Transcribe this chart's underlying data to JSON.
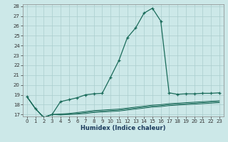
{
  "xlabel": "Humidex (Indice chaleur)",
  "bg_color": "#cce8e8",
  "grid_color": "#aacece",
  "line_color": "#1a6b5a",
  "xlim": [
    -0.5,
    23.5
  ],
  "ylim": [
    16.8,
    28.2
  ],
  "yticks": [
    17,
    18,
    19,
    20,
    21,
    22,
    23,
    24,
    25,
    26,
    27,
    28
  ],
  "xticks": [
    0,
    1,
    2,
    3,
    4,
    5,
    6,
    7,
    8,
    9,
    10,
    11,
    12,
    13,
    14,
    15,
    16,
    17,
    18,
    19,
    20,
    21,
    22,
    23
  ],
  "series": {
    "main": {
      "x": [
        0,
        1,
        2,
        3,
        4,
        5,
        6,
        7,
        8,
        9,
        10,
        11,
        12,
        13,
        14,
        15,
        16,
        17,
        18,
        19,
        20,
        21,
        22,
        23
      ],
      "y": [
        18.8,
        17.6,
        16.7,
        17.0,
        18.3,
        18.5,
        18.7,
        19.0,
        19.1,
        19.15,
        20.8,
        22.5,
        24.8,
        25.8,
        27.3,
        27.8,
        26.5,
        19.2,
        19.05,
        19.1,
        19.1,
        19.15,
        19.15,
        19.2
      ]
    },
    "lower1": {
      "x": [
        0,
        1,
        2,
        3,
        4,
        5,
        6,
        7,
        8,
        9,
        10,
        11,
        12,
        13,
        14,
        15,
        16,
        17,
        18,
        19,
        20,
        21,
        22,
        23
      ],
      "y": [
        18.8,
        17.6,
        16.7,
        17.0,
        17.05,
        17.1,
        17.2,
        17.3,
        17.4,
        17.45,
        17.5,
        17.55,
        17.65,
        17.75,
        17.85,
        17.95,
        18.0,
        18.1,
        18.15,
        18.2,
        18.25,
        18.3,
        18.35,
        18.4
      ]
    },
    "lower2": {
      "x": [
        0,
        1,
        2,
        3,
        4,
        5,
        6,
        7,
        8,
        9,
        10,
        11,
        12,
        13,
        14,
        15,
        16,
        17,
        18,
        19,
        20,
        21,
        22,
        23
      ],
      "y": [
        18.8,
        17.6,
        16.7,
        17.0,
        17.0,
        17.05,
        17.1,
        17.2,
        17.3,
        17.35,
        17.4,
        17.45,
        17.55,
        17.65,
        17.75,
        17.85,
        17.9,
        18.0,
        18.05,
        18.1,
        18.15,
        18.2,
        18.25,
        18.3
      ]
    },
    "lower3": {
      "x": [
        0,
        1,
        2,
        3,
        4,
        5,
        6,
        7,
        8,
        9,
        10,
        11,
        12,
        13,
        14,
        15,
        16,
        17,
        18,
        19,
        20,
        21,
        22,
        23
      ],
      "y": [
        18.8,
        17.6,
        16.7,
        17.0,
        16.95,
        17.0,
        17.05,
        17.1,
        17.2,
        17.25,
        17.3,
        17.35,
        17.45,
        17.55,
        17.65,
        17.75,
        17.8,
        17.9,
        17.95,
        18.0,
        18.05,
        18.1,
        18.15,
        18.2
      ]
    }
  }
}
